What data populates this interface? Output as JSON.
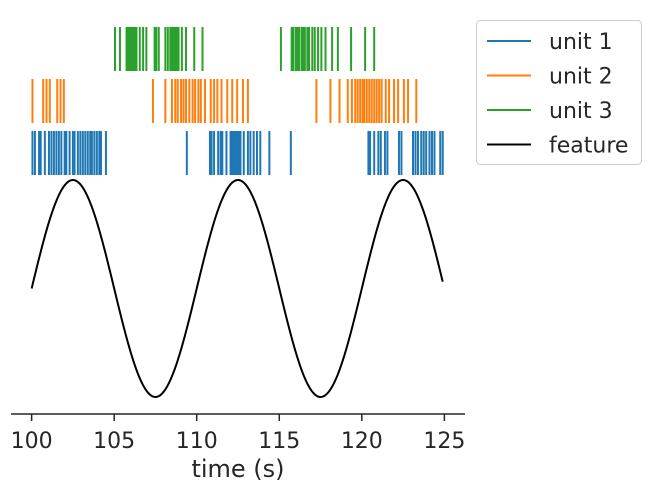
{
  "chart_data": {
    "type": "line",
    "title": "",
    "xlabel": "time (s)",
    "ylabel": "",
    "xlim": [
      98.75,
      126.25
    ],
    "xticks": [
      100,
      105,
      110,
      115,
      120,
      125
    ],
    "xtick_labels": [
      "100",
      "105",
      "110",
      "115",
      "120",
      "125"
    ],
    "grid": false,
    "legend_position": "outside-top-right",
    "feature": {
      "name": "feature",
      "color": "#000000",
      "x_range": [
        100,
        124.9
      ],
      "period": 10,
      "phase_at_start": 0,
      "description": "sine wave, amplitude 1, starting at 0 and rising"
    },
    "spike_trains": [
      {
        "name": "unit 1",
        "color": "#1f77b4",
        "times": [
          100.05,
          100.2,
          100.45,
          100.55,
          100.8,
          101.05,
          101.2,
          101.35,
          101.5,
          101.65,
          101.8,
          102.0,
          102.1,
          102.3,
          102.5,
          102.6,
          102.8,
          102.95,
          103.1,
          103.25,
          103.4,
          103.55,
          103.65,
          103.8,
          103.95,
          104.1,
          104.2,
          104.5,
          109.4,
          110.8,
          110.9,
          111.05,
          111.3,
          111.45,
          111.55,
          111.8,
          112.05,
          112.15,
          112.25,
          112.35,
          112.45,
          112.55,
          112.65,
          112.85,
          113.1,
          113.25,
          113.45,
          113.65,
          113.85,
          114.4,
          115.7,
          120.4,
          120.5,
          120.75,
          121.0,
          121.15,
          121.4,
          121.55,
          122.25,
          122.4,
          123.1,
          123.25,
          123.4,
          123.6,
          123.75,
          123.9,
          124.1,
          124.25,
          124.4,
          124.75,
          124.9
        ]
      },
      {
        "name": "unit 2",
        "color": "#ff7f0e",
        "times": [
          100.05,
          100.7,
          100.9,
          101.1,
          101.55,
          101.75,
          101.95,
          107.35,
          108.1,
          108.5,
          108.7,
          108.85,
          109.05,
          109.2,
          109.35,
          109.55,
          109.75,
          109.9,
          110.1,
          110.25,
          110.5,
          110.85,
          111.05,
          111.25,
          111.5,
          111.85,
          112.15,
          112.45,
          112.8,
          113.1,
          117.25,
          118.1,
          118.65,
          119.15,
          119.4,
          119.6,
          119.75,
          119.9,
          120.05,
          120.15,
          120.3,
          120.45,
          120.6,
          120.75,
          120.9,
          121.05,
          121.2,
          121.45,
          121.65,
          121.95,
          122.2,
          122.55,
          122.8,
          123.3
        ]
      },
      {
        "name": "unit 3",
        "color": "#2ca02c",
        "times": [
          105.05,
          105.35,
          105.75,
          105.85,
          105.95,
          106.05,
          106.15,
          106.25,
          106.35,
          106.55,
          106.75,
          106.95,
          107.45,
          107.55,
          107.7,
          108.1,
          108.25,
          108.4,
          108.5,
          108.6,
          108.7,
          108.8,
          108.9,
          109.1,
          109.35,
          109.85,
          110.35,
          115.1,
          115.75,
          115.85,
          116.0,
          116.1,
          116.2,
          116.35,
          116.45,
          116.55,
          116.7,
          116.8,
          117.0,
          117.15,
          117.35,
          117.55,
          117.8,
          118.2,
          118.55,
          119.35,
          120.2,
          120.75
        ]
      }
    ]
  },
  "legend": {
    "entries": [
      {
        "label": "unit 1",
        "color": "#1f77b4"
      },
      {
        "label": "unit 2",
        "color": "#ff7f0e"
      },
      {
        "label": "unit 3",
        "color": "#2ca02c"
      },
      {
        "label": "feature",
        "color": "#000000"
      }
    ]
  }
}
